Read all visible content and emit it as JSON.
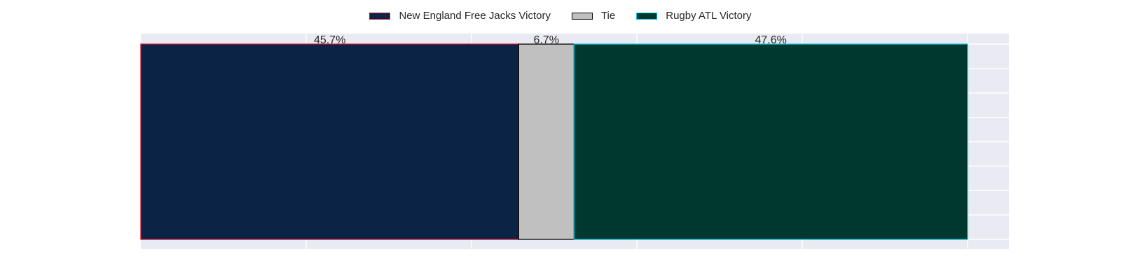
{
  "chart_data": {
    "type": "bar",
    "orientation": "horizontal",
    "stacked": true,
    "normalized": true,
    "categories": [
      ""
    ],
    "series": [
      {
        "name": "New England Free Jacks Victory",
        "values": [
          45.7
        ],
        "label": "45.7%",
        "fill": "#0b2344",
        "edge": "#c8102e"
      },
      {
        "name": "Tie",
        "values": [
          6.7
        ],
        "label": "6.7%",
        "fill": "#c0c0c0",
        "edge": "#000000"
      },
      {
        "name": "Rugby ATL Victory",
        "values": [
          47.6
        ],
        "label": "47.6%",
        "fill": "#00382e",
        "edge": "#00c0e0"
      }
    ],
    "xlim": [
      0,
      105
    ],
    "grid": true,
    "legend_position": "top-center",
    "background": "#eaeaf2",
    "grid_color": "#ffffff"
  }
}
